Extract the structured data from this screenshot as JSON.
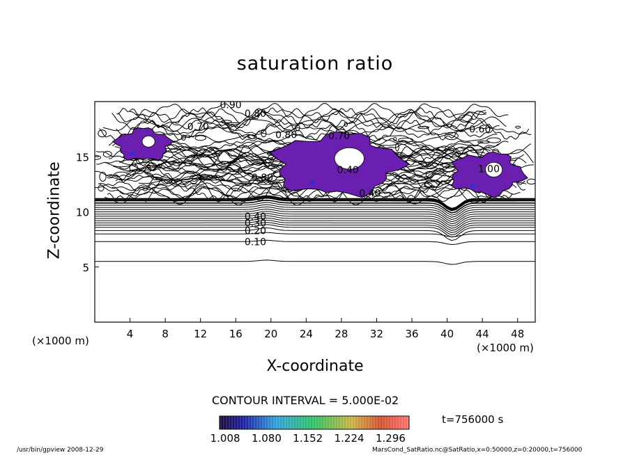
{
  "chart_data": {
    "type": "contour",
    "title": "saturation ratio",
    "xlabel": "X-coordinate",
    "ylabel": "Z-coordinate",
    "x_unit_label": "(×1000 m)",
    "xlim": [
      0,
      50
    ],
    "ylim": [
      0,
      20
    ],
    "x_ticks": [
      4,
      8,
      12,
      16,
      20,
      24,
      28,
      32,
      36,
      40,
      44,
      48
    ],
    "y_ticks": [
      5,
      10,
      15
    ],
    "contour_interval_label": "CONTOUR INTERVAL = 5.000E-02",
    "contour_labels": [
      "0.90",
      "0.80",
      "0.80",
      "0.70",
      "0.60",
      "0.40",
      "0.70",
      "0.80",
      "1.00",
      "0.40",
      "0.30",
      "0.20",
      "0.10",
      "1.00"
    ],
    "stable_layer_levels": [
      {
        "z": 7.3,
        "label": "0.10"
      },
      {
        "z": 8.3,
        "label": "0.20"
      },
      {
        "z": 9.0,
        "label": "0.30"
      },
      {
        "z": 9.6,
        "label": "0.40"
      }
    ],
    "supersaturated_regions": [
      {
        "x_range": [
          2.5,
          8.5
        ],
        "z_range": [
          14.7,
          17.5
        ]
      },
      {
        "x_range": [
          20.5,
          34.5
        ],
        "z_range": [
          11.6,
          17.0
        ]
      },
      {
        "x_range": [
          40.5,
          48.5
        ],
        "z_range": [
          11.6,
          15.3
        ]
      }
    ],
    "colorbar": {
      "ticks": [
        "1.008",
        "1.080",
        "1.152",
        "1.224",
        "1.296"
      ],
      "range": [
        1.0,
        1.33
      ]
    },
    "time_label": "t=756000 s"
  },
  "footer": {
    "left": "/usr/bin/gpview  2008-12-29",
    "right": "MarsCond_SatRatio.nc@SatRatio,x=0:50000,z=0:20000,t=756000"
  },
  "colors": {
    "fill_low": "#6a1fb0",
    "fill_high": "#2a2fd8",
    "line": "#000000"
  }
}
